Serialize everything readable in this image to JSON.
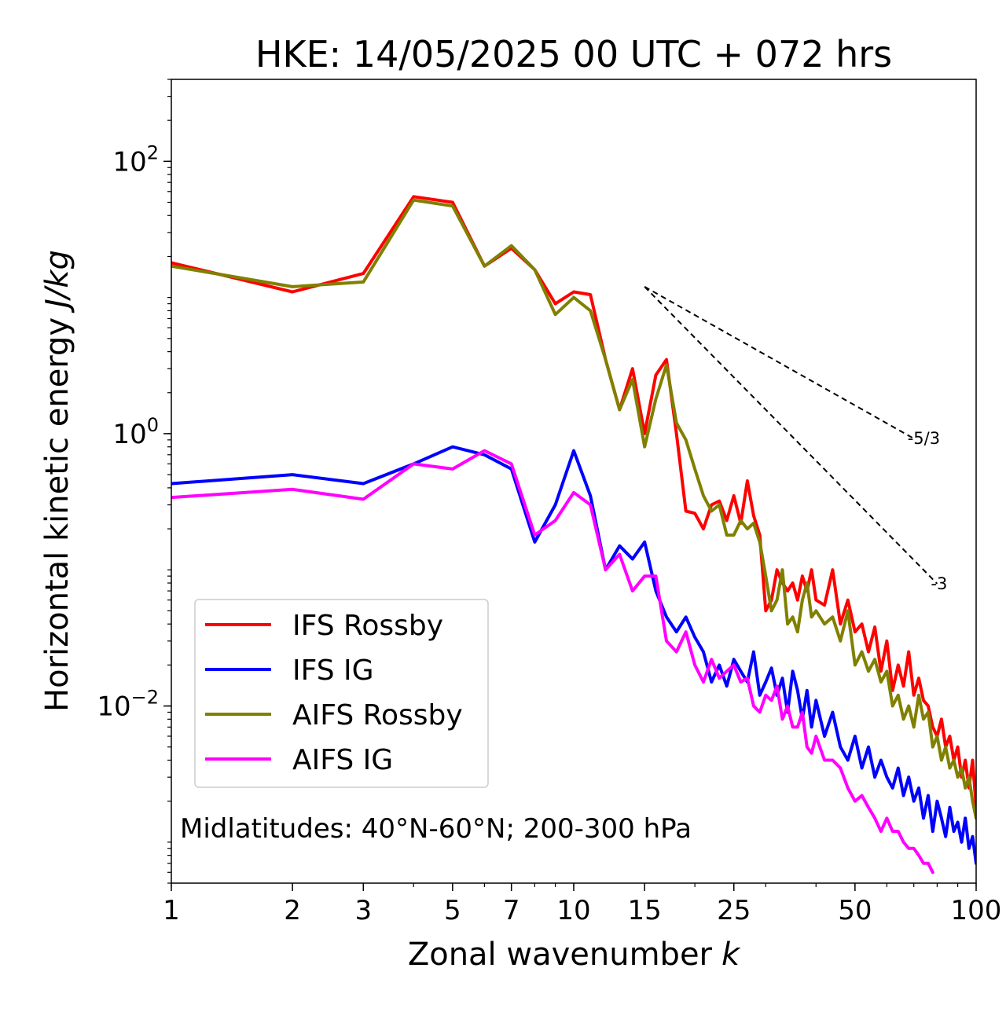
{
  "chart_data": {
    "type": "line",
    "title": "HKE: 14/05/2025 00 UTC + 072 hrs",
    "xlabel": "Zonal wavenumber",
    "xlabel_var": "k",
    "ylabel": "Horizontal kinetic energy",
    "ylabel_units": "J/kg",
    "x_scale": "log",
    "y_scale": "log",
    "xlim": [
      1,
      100
    ],
    "ylim": [
      0.0005,
      400
    ],
    "xticks": [
      1,
      2,
      3,
      5,
      7,
      10,
      15,
      25,
      50,
      100
    ],
    "xtick_labels": [
      "1",
      "2",
      "3",
      "5",
      "7",
      "10",
      "15",
      "25",
      "50",
      "100"
    ],
    "yticks": [
      0.01,
      1,
      100
    ],
    "ytick_labels": [
      {
        "base": "10",
        "exp": "−2"
      },
      {
        "base": "10",
        "exp": "0"
      },
      {
        "base": "10",
        "exp": "2"
      }
    ],
    "grid": false,
    "legend_position": "lower-left",
    "annotation": "Midlatitudes: 40°N-60°N; 200-300 hPa",
    "reference_slopes": [
      {
        "label": "-5/3",
        "slope": -1.6667,
        "x": [
          15,
          70
        ],
        "y0": 12
      },
      {
        "label": "-3",
        "slope": -3,
        "x": [
          15,
          80
        ],
        "y0": 12
      }
    ],
    "series": [
      {
        "name": "IFS Rossby",
        "color": "#ff0000",
        "x": [
          1,
          2,
          3,
          4,
          5,
          6,
          7,
          8,
          9,
          10,
          11,
          12,
          13,
          14,
          15,
          16,
          17,
          18,
          19,
          20,
          21,
          22,
          23,
          24,
          25,
          26,
          27,
          28,
          29,
          30,
          31,
          32,
          33,
          34,
          35,
          36,
          37,
          38,
          39,
          40,
          42,
          44,
          46,
          48,
          50,
          52,
          54,
          56,
          58,
          60,
          62,
          64,
          66,
          68,
          70,
          72,
          74,
          76,
          78,
          80,
          82,
          84,
          86,
          88,
          90,
          92,
          94,
          96,
          98,
          100
        ],
        "values": [
          18,
          11,
          15,
          55,
          50,
          17,
          23,
          16,
          9,
          11,
          10.5,
          3.5,
          1.5,
          3,
          1,
          2.7,
          3.5,
          1,
          0.27,
          0.26,
          0.2,
          0.3,
          0.32,
          0.23,
          0.35,
          0.22,
          0.45,
          0.25,
          0.18,
          0.05,
          0.06,
          0.1,
          0.08,
          0.07,
          0.08,
          0.06,
          0.09,
          0.07,
          0.1,
          0.06,
          0.055,
          0.1,
          0.04,
          0.06,
          0.035,
          0.04,
          0.025,
          0.038,
          0.018,
          0.03,
          0.013,
          0.02,
          0.014,
          0.025,
          0.012,
          0.016,
          0.011,
          0.01,
          0.007,
          0.006,
          0.008,
          0.005,
          0.006,
          0.004,
          0.005,
          0.003,
          0.004,
          0.0025,
          0.004,
          0.0018
        ]
      },
      {
        "name": "IFS IG",
        "color": "#0000ff",
        "x": [
          1,
          2,
          3,
          4,
          5,
          6,
          7,
          8,
          9,
          10,
          11,
          12,
          13,
          14,
          15,
          16,
          17,
          18,
          19,
          20,
          21,
          22,
          23,
          24,
          25,
          26,
          27,
          28,
          29,
          30,
          31,
          32,
          33,
          34,
          35,
          36,
          37,
          38,
          39,
          40,
          42,
          44,
          46,
          48,
          50,
          52,
          54,
          56,
          58,
          60,
          62,
          64,
          66,
          68,
          70,
          72,
          74,
          76,
          78,
          80,
          82,
          84,
          86,
          88,
          90,
          92,
          94,
          96,
          98,
          100
        ],
        "values": [
          0.43,
          0.5,
          0.43,
          0.6,
          0.8,
          0.7,
          0.55,
          0.16,
          0.3,
          0.75,
          0.35,
          0.1,
          0.15,
          0.12,
          0.16,
          0.07,
          0.045,
          0.035,
          0.045,
          0.032,
          0.025,
          0.015,
          0.02,
          0.014,
          0.022,
          0.018,
          0.015,
          0.025,
          0.012,
          0.015,
          0.019,
          0.012,
          0.016,
          0.009,
          0.018,
          0.013,
          0.008,
          0.013,
          0.007,
          0.011,
          0.006,
          0.009,
          0.005,
          0.004,
          0.006,
          0.0035,
          0.005,
          0.003,
          0.004,
          0.003,
          0.0025,
          0.0035,
          0.0022,
          0.003,
          0.002,
          0.0025,
          0.0015,
          0.0022,
          0.0012,
          0.002,
          0.0015,
          0.0011,
          0.0018,
          0.0012,
          0.0014,
          0.001,
          0.0015,
          0.0009,
          0.0011,
          0.0007
        ]
      },
      {
        "name": "AIFS Rossby",
        "color": "#808000",
        "x": [
          1,
          2,
          3,
          4,
          5,
          6,
          7,
          8,
          9,
          10,
          11,
          12,
          13,
          14,
          15,
          16,
          17,
          18,
          19,
          20,
          21,
          22,
          23,
          24,
          25,
          26,
          27,
          28,
          29,
          30,
          31,
          32,
          33,
          34,
          35,
          36,
          37,
          38,
          39,
          40,
          42,
          44,
          46,
          48,
          50,
          52,
          54,
          56,
          58,
          60,
          62,
          64,
          66,
          68,
          70,
          72,
          74,
          76,
          78,
          80,
          82,
          84,
          86,
          88,
          90,
          92,
          94,
          96,
          98,
          100
        ],
        "values": [
          17,
          12,
          13,
          52,
          47,
          17,
          24,
          16,
          7.5,
          10,
          8,
          3.5,
          1.5,
          2.5,
          0.8,
          1.8,
          3.2,
          1.2,
          0.9,
          0.55,
          0.35,
          0.27,
          0.3,
          0.18,
          0.18,
          0.23,
          0.2,
          0.22,
          0.16,
          0.09,
          0.05,
          0.06,
          0.1,
          0.04,
          0.045,
          0.035,
          0.06,
          0.08,
          0.045,
          0.05,
          0.04,
          0.045,
          0.03,
          0.05,
          0.02,
          0.025,
          0.018,
          0.022,
          0.015,
          0.018,
          0.01,
          0.012,
          0.008,
          0.01,
          0.007,
          0.012,
          0.008,
          0.009,
          0.005,
          0.006,
          0.004,
          0.005,
          0.0035,
          0.004,
          0.003,
          0.0035,
          0.0025,
          0.003,
          0.002,
          0.0015
        ]
      },
      {
        "name": "AIFS IG",
        "color": "#ff00ff",
        "x": [
          1,
          2,
          3,
          4,
          5,
          6,
          7,
          8,
          9,
          10,
          11,
          12,
          13,
          14,
          15,
          16,
          17,
          18,
          19,
          20,
          21,
          22,
          23,
          24,
          25,
          26,
          27,
          28,
          29,
          30,
          31,
          32,
          33,
          34,
          35,
          36,
          37,
          38,
          39,
          40,
          42,
          44,
          46,
          48,
          50,
          52,
          54,
          56,
          58,
          60,
          62,
          64,
          66,
          68,
          70,
          72,
          74,
          76,
          78
        ],
        "values": [
          0.34,
          0.39,
          0.33,
          0.6,
          0.55,
          0.75,
          0.6,
          0.18,
          0.23,
          0.37,
          0.3,
          0.1,
          0.13,
          0.07,
          0.09,
          0.09,
          0.03,
          0.025,
          0.035,
          0.02,
          0.015,
          0.022,
          0.016,
          0.018,
          0.02,
          0.015,
          0.016,
          0.01,
          0.009,
          0.012,
          0.011,
          0.014,
          0.008,
          0.01,
          0.007,
          0.007,
          0.009,
          0.005,
          0.0045,
          0.006,
          0.004,
          0.004,
          0.0035,
          0.0025,
          0.002,
          0.0022,
          0.0018,
          0.0015,
          0.0012,
          0.0015,
          0.0012,
          0.0012,
          0.001,
          0.0009,
          0.0009,
          0.0008,
          0.0007,
          0.0007,
          0.0006
        ]
      }
    ]
  }
}
